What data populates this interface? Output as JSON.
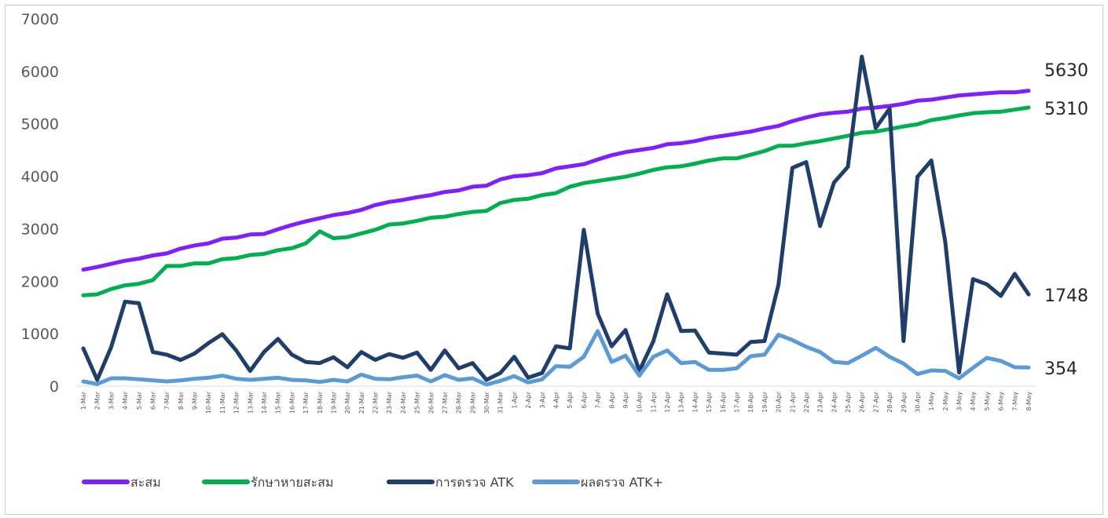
{
  "chart_data": {
    "type": "line",
    "title": "",
    "xlabel": "",
    "ylabel": "",
    "ylim": [
      0,
      7000
    ],
    "yticks": [
      0,
      1000,
      2000,
      3000,
      4000,
      5000,
      6000,
      7000
    ],
    "grid": false,
    "legend_position": "bottom",
    "x": [
      "1-Mar",
      "2-Mar",
      "3-Mar",
      "4-Mar",
      "5-Mar",
      "6-Mar",
      "7-Mar",
      "8-Mar",
      "9-Mar",
      "10-Mar",
      "11-Mar",
      "12-Mar",
      "13-Mar",
      "14-Mar",
      "15-Mar",
      "16-Mar",
      "17-Mar",
      "18-Mar",
      "19-Mar",
      "20-Mar",
      "21-Mar",
      "22-Mar",
      "23-Mar",
      "24-Mar",
      "25-Mar",
      "26-Mar",
      "27-Mar",
      "28-Mar",
      "29-Mar",
      "30-Mar",
      "31-Mar",
      "1-Apr",
      "2-Apr",
      "3-Apr",
      "4-Apr",
      "5-Apr",
      "6-Apr",
      "7-Apr",
      "8-Apr",
      "9-Apr",
      "10-Apr",
      "11-Apr",
      "12-Apr",
      "13-Apr",
      "14-Apr",
      "15-Apr",
      "16-Apr",
      "17-Apr",
      "18-Apr",
      "19-Apr",
      "20-Apr",
      "21-Apr",
      "22-Apr",
      "23-Apr",
      "24-Apr",
      "25-Apr",
      "26-Apr",
      "27-Apr",
      "28-Apr",
      "29-Apr",
      "30-Apr",
      "1-May",
      "2-May",
      "3-May",
      "4-May",
      "5-May",
      "6-May",
      "7-May",
      "8-May"
    ],
    "series": [
      {
        "name": "สะสม",
        "color": "#7f1fff",
        "end_label": "5630",
        "values": [
          2220,
          2270,
          2330,
          2390,
          2430,
          2490,
          2530,
          2620,
          2680,
          2720,
          2810,
          2830,
          2890,
          2900,
          2990,
          3070,
          3140,
          3200,
          3260,
          3300,
          3360,
          3450,
          3510,
          3550,
          3600,
          3640,
          3700,
          3730,
          3800,
          3820,
          3940,
          4000,
          4020,
          4060,
          4150,
          4190,
          4230,
          4320,
          4400,
          4460,
          4500,
          4540,
          4610,
          4630,
          4670,
          4730,
          4770,
          4810,
          4850,
          4910,
          4960,
          5050,
          5120,
          5180,
          5210,
          5230,
          5290,
          5310,
          5340,
          5380,
          5440,
          5460,
          5500,
          5540,
          5560,
          5580,
          5600,
          5600,
          5630
        ]
      },
      {
        "name": "รักษาหายสะสม",
        "color": "#00b050",
        "end_label": "5310",
        "values": [
          1730,
          1750,
          1850,
          1920,
          1950,
          2020,
          2290,
          2290,
          2340,
          2340,
          2420,
          2440,
          2500,
          2520,
          2590,
          2630,
          2720,
          2950,
          2820,
          2840,
          2910,
          2980,
          3080,
          3100,
          3150,
          3210,
          3230,
          3280,
          3320,
          3340,
          3490,
          3550,
          3570,
          3640,
          3680,
          3800,
          3870,
          3910,
          3950,
          3990,
          4050,
          4120,
          4170,
          4190,
          4240,
          4300,
          4340,
          4340,
          4410,
          4480,
          4580,
          4580,
          4630,
          4670,
          4720,
          4770,
          4830,
          4850,
          4900,
          4950,
          4990,
          5070,
          5110,
          5160,
          5200,
          5220,
          5230,
          5270,
          5310
        ]
      },
      {
        "name": "การตรวจ ATK",
        "color": "#1f3f6a",
        "end_label": "1748",
        "values": [
          720,
          120,
          740,
          1610,
          1580,
          650,
          600,
          500,
          620,
          820,
          990,
          680,
          290,
          650,
          900,
          600,
          460,
          440,
          550,
          360,
          650,
          500,
          610,
          540,
          640,
          310,
          680,
          340,
          440,
          120,
          250,
          560,
          160,
          250,
          760,
          720,
          2980,
          1380,
          760,
          1070,
          290,
          850,
          1750,
          1050,
          1060,
          640,
          620,
          600,
          840,
          860,
          1930,
          4160,
          4270,
          3050,
          3880,
          4180,
          6280,
          4920,
          5290,
          860,
          3990,
          4300,
          2750,
          260,
          2040,
          1940,
          1720,
          2140,
          1748
        ]
      },
      {
        "name": "ผลตรวจ ATK+",
        "color": "#5b9bd5",
        "end_label": "354",
        "values": [
          90,
          40,
          150,
          150,
          130,
          110,
          90,
          110,
          140,
          160,
          200,
          140,
          120,
          140,
          160,
          120,
          110,
          80,
          120,
          90,
          220,
          140,
          130,
          170,
          200,
          90,
          210,
          120,
          150,
          30,
          100,
          190,
          70,
          130,
          380,
          370,
          560,
          1050,
          460,
          580,
          200,
          560,
          680,
          440,
          460,
          310,
          310,
          340,
          570,
          600,
          980,
          880,
          750,
          650,
          460,
          440,
          580,
          730,
          560,
          430,
          230,
          300,
          290,
          150,
          350,
          540,
          480,
          360,
          354
        ]
      }
    ]
  }
}
